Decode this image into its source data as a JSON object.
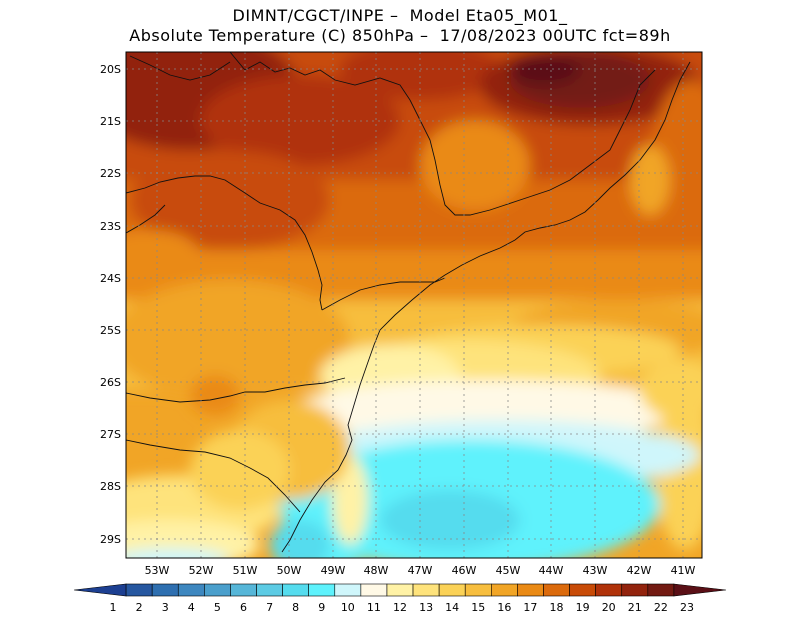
{
  "header": {
    "line1": "DIMNT/CGCT/INPE –  Model Eta05_M01_",
    "line2": "Absolute Temperature (C) 850hPa –  17/08/2023 00UTC fct=89h"
  },
  "map": {
    "lat_labels": [
      "20S",
      "21S",
      "22S",
      "23S",
      "24S",
      "25S",
      "26S",
      "27S",
      "28S",
      "29S"
    ],
    "lon_labels": [
      "53W",
      "52W",
      "51W",
      "50W",
      "49W",
      "48W",
      "47W",
      "46W",
      "45W",
      "44W",
      "43W",
      "42W",
      "41W"
    ]
  },
  "colorbar": {
    "labels": [
      "1",
      "2",
      "3",
      "4",
      "5",
      "6",
      "7",
      "8",
      "9",
      "10",
      "11",
      "12",
      "13",
      "14",
      "15",
      "16",
      "17",
      "18",
      "19",
      "20",
      "21",
      "22",
      "23"
    ],
    "colors": [
      "#1c3f91",
      "#2657a0",
      "#2e6fb0",
      "#3d87bf",
      "#4a9fcc",
      "#56b6d8",
      "#5ccbe4",
      "#55dcee",
      "#5ef2fc",
      "#cff6fb",
      "#fff9e6",
      "#fff2a6",
      "#fee37c",
      "#fbd257",
      "#f7be3e",
      "#f1a526",
      "#ea8a15",
      "#db6a0c",
      "#c84b07",
      "#b0320a",
      "#92230d",
      "#731a12",
      "#5a0f16"
    ]
  }
}
